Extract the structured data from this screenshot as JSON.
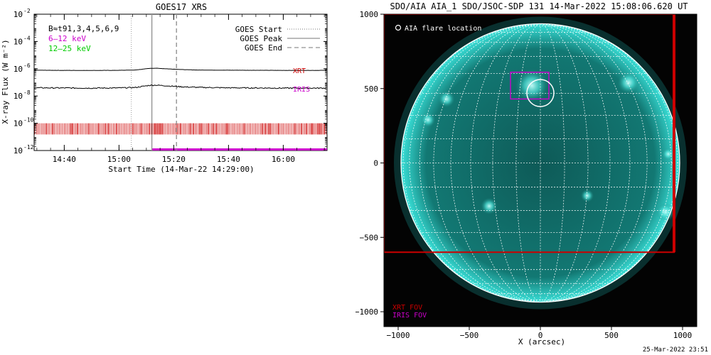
{
  "chart_data": [
    {
      "type": "line",
      "title": "GOES17 XRS",
      "xlabel": "Start Time (14-Mar-22 14:29:00)",
      "ylabel": "X-ray Flux (W m⁻²)",
      "x_ticks": [
        "14:40",
        "15:00",
        "15:20",
        "15:40",
        "16:00"
      ],
      "x_tick_minutes": [
        11,
        31,
        51,
        71,
        91
      ],
      "x_range_minutes": [
        0,
        107
      ],
      "y_scale": "log",
      "y_range": [
        1e-12,
        0.01
      ],
      "y_ticks": [
        {
          "exp": "-12",
          "value": 1e-12
        },
        {
          "exp": "-10",
          "value": 1e-10
        },
        {
          "exp": "-8",
          "value": 1e-08
        },
        {
          "exp": "-6",
          "value": 1e-06
        },
        {
          "exp": "-4",
          "value": 0.0001
        },
        {
          "exp": "-2",
          "value": 0.01
        }
      ],
      "tick_base": "10",
      "top_left_labels": [
        {
          "text": "B≈t91,3,4,5,6,9",
          "color": "#000000"
        },
        {
          "text": "6–12 keV",
          "color": "#cc00cc"
        },
        {
          "text": "12–25 keV",
          "color": "#00cc00"
        }
      ],
      "legend": [
        {
          "label": "GOES Start",
          "style": "dotted"
        },
        {
          "label": "GOES Peak",
          "style": "solid"
        },
        {
          "label": "GOES End",
          "style": "dashed"
        }
      ],
      "legend_position": "top-right",
      "series": [
        {
          "name": "XRT",
          "color": "#000000",
          "label_color": "#cc0000",
          "x": [
            0,
            10,
            20,
            30,
            37,
            40,
            42,
            44,
            46,
            50,
            55,
            60,
            70,
            80,
            90,
            107
          ],
          "y": [
            7.8e-07,
            7.6e-07,
            7.5e-07,
            7.6e-07,
            8e-07,
            9.5e-07,
            1.05e-06,
            1.1e-06,
            1.05e-06,
            9.5e-07,
            8.5e-07,
            8e-07,
            7.8e-07,
            7.7e-07,
            7.6e-07,
            7.6e-07
          ]
        },
        {
          "name": "IRIS",
          "color": "#000000",
          "label_color": "#cc00cc",
          "x": [
            0,
            10,
            20,
            30,
            37,
            40,
            42,
            44,
            46,
            50,
            55,
            60,
            70,
            80,
            90,
            107
          ],
          "y": [
            4e-08,
            3.9e-08,
            3.8e-08,
            3.9e-08,
            4.2e-08,
            5.2e-08,
            6e-08,
            6.3e-08,
            6e-08,
            5.3e-08,
            4.6e-08,
            4.3e-08,
            4e-08,
            3.9e-08,
            3.8e-08,
            3.8e-08
          ]
        }
      ],
      "markers": {
        "goes_start": 35.5,
        "goes_peak": 43,
        "goes_end": 52
      },
      "xrt_coverage": {
        "color": "#cc0000",
        "y_low": 1.5e-11,
        "y_high": 1e-10,
        "x_start": 0,
        "x_end": 107
      },
      "iris_coverage": {
        "color": "#cc00cc",
        "y": 1e-12,
        "x_start": 43,
        "x_end": 107
      }
    },
    {
      "type": "image",
      "title": "SDO/AIA AIA_1 SDO/JSOC-SDP 131 14-Mar-2022 15:08:06.620 UT",
      "xlabel": "X (arcsec)",
      "ylabel": "",
      "x_ticks": [
        "−1000",
        "−500",
        "0",
        "500",
        "1000"
      ],
      "x_tick_values": [
        -1000,
        -500,
        0,
        500,
        1000
      ],
      "y_ticks": [
        "1000",
        "500",
        "0",
        "−500",
        "−1000"
      ],
      "y_tick_values": [
        1000,
        500,
        0,
        -500,
        -1000
      ],
      "x_range": [
        -1100,
        1100
      ],
      "y_range": [
        -1100,
        1000
      ],
      "solar_radius_arcsec": 980,
      "grid_spacing_deg": 10,
      "colors": {
        "disk": "#0e5a57",
        "limb_glow": "#39e0d8",
        "grid": "#ffffff"
      },
      "flare_location_label": "AIA flare location",
      "flare_location": {
        "x": 0,
        "y": 470,
        "r": 95
      },
      "iris_fov": {
        "x0": -210,
        "x1": 60,
        "y0": 430,
        "y1": 610,
        "color": "#cc00cc"
      },
      "xrt_fov": {
        "x0": -1100,
        "x1": 940,
        "y0": -600,
        "y1": 1000,
        "color": "#cc0000"
      },
      "fov_legend": [
        {
          "label": "XRT FOV",
          "color": "#cc0000"
        },
        {
          "label": "IRIS FOV",
          "color": "#cc00cc"
        }
      ],
      "bright_regions": [
        {
          "x": -60,
          "y": 520,
          "r": 90
        },
        {
          "x": 620,
          "y": 540,
          "r": 60
        },
        {
          "x": -660,
          "y": 430,
          "r": 45
        },
        {
          "x": -790,
          "y": 290,
          "r": 40
        },
        {
          "x": -360,
          "y": -290,
          "r": 45
        },
        {
          "x": 330,
          "y": -220,
          "r": 35
        },
        {
          "x": 880,
          "y": -330,
          "r": 50
        },
        {
          "x": 900,
          "y": 60,
          "r": 35
        }
      ]
    }
  ],
  "footer": {
    "timestamp": "25-Mar-2022 23:51"
  }
}
